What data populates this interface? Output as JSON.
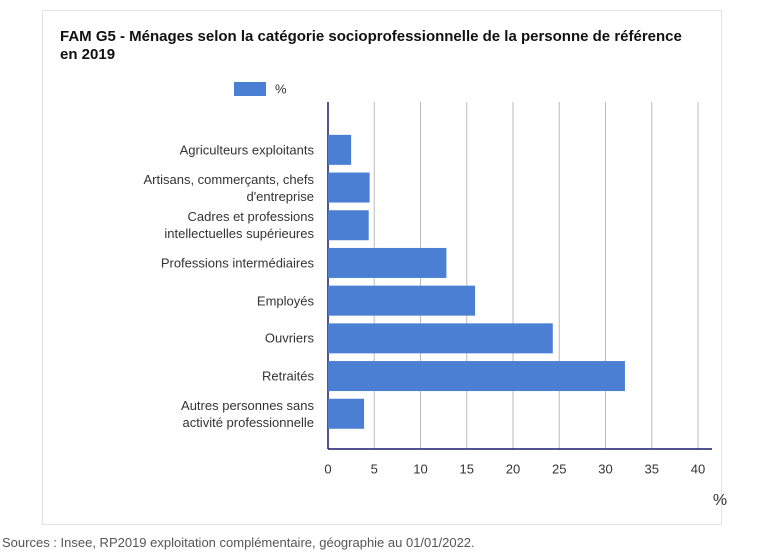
{
  "chart_data": {
    "type": "bar",
    "orientation": "horizontal",
    "title": "FAM G5 - Ménages selon la catégorie socioprofessionnelle de la personne de référence en 2019",
    "categories": [
      "Agriculteurs exploitants",
      "Artisans, commerçants, chefs d'entreprise",
      "Cadres et professions intellectuelles supérieures",
      "Professions intermédiaires",
      "Employés",
      "Ouvriers",
      "Retraités",
      "Autres personnes sans activité professionnelle"
    ],
    "series": [
      {
        "name": "%",
        "color": "#4a7fd4",
        "values": [
          2.5,
          4.5,
          4.4,
          12.8,
          15.9,
          24.3,
          32.1,
          3.9
        ]
      }
    ],
    "xlabel": "%",
    "xlim": [
      0,
      40
    ],
    "xticks": [
      0,
      5,
      10,
      15,
      20,
      25,
      30,
      35,
      40
    ],
    "grid": true,
    "source": "Sources : Insee, RP2019 exploitation complémentaire, géographie au 01/01/2022."
  }
}
